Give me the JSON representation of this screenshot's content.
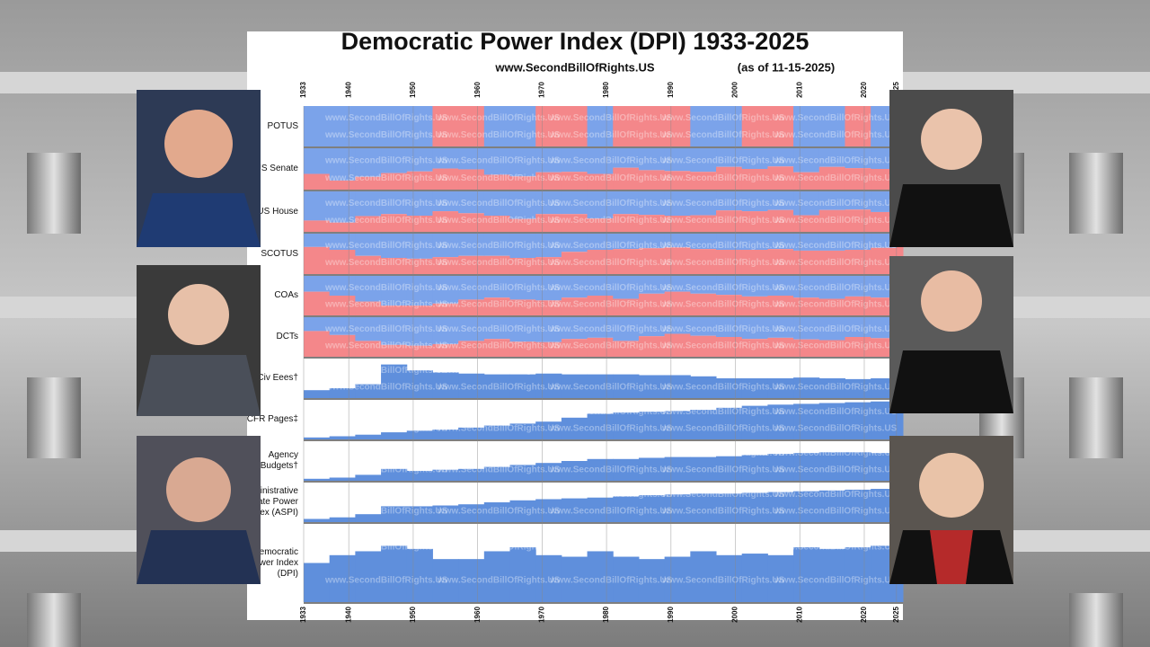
{
  "chart_data": {
    "type": "stacked-panels",
    "title": "Democratic Power Index (DPI) 1933-2025",
    "subtitle": "www.SecondBillOfRights.US",
    "annotation": "(as of 11-15-2025)",
    "xlim": [
      1933,
      2026
    ],
    "xticks": [
      1933,
      1940,
      1950,
      1960,
      1970,
      1980,
      1990,
      2000,
      2010,
      2020,
      2025
    ],
    "grid": true,
    "panels": [
      {
        "name": "POTUS",
        "type": "share",
        "color": "#7ba3ea",
        "color_other": "#f4878a",
        "x": [
          1933,
          1953,
          1961,
          1969,
          1977,
          1981,
          1993,
          2001,
          2009,
          2017,
          2021,
          2025
        ],
        "values": [
          100,
          0,
          100,
          0,
          100,
          0,
          100,
          0,
          100,
          0,
          100,
          0
        ]
      },
      {
        "name": "US Senate",
        "type": "share",
        "color": "#7ba3ea",
        "color_other": "#f4878a",
        "x": [
          1933,
          1937,
          1941,
          1945,
          1949,
          1953,
          1957,
          1961,
          1965,
          1969,
          1973,
          1977,
          1981,
          1985,
          1989,
          1993,
          1997,
          2001,
          2005,
          2009,
          2013,
          2017,
          2021,
          2025
        ],
        "values": [
          62,
          78,
          69,
          60,
          56,
          49,
          51,
          64,
          68,
          58,
          57,
          62,
          47,
          53,
          55,
          57,
          45,
          50,
          44,
          58,
          45,
          48,
          50,
          47
        ]
      },
      {
        "name": "US House",
        "type": "share",
        "color": "#7ba3ea",
        "color_other": "#f4878a",
        "x": [
          1933,
          1937,
          1941,
          1945,
          1949,
          1953,
          1957,
          1961,
          1965,
          1969,
          1973,
          1977,
          1981,
          1985,
          1989,
          1993,
          1997,
          2001,
          2005,
          2009,
          2013,
          2017,
          2021,
          2025
        ],
        "values": [
          72,
          77,
          61,
          56,
          60,
          49,
          54,
          60,
          68,
          56,
          56,
          67,
          56,
          58,
          60,
          59,
          47,
          49,
          46,
          59,
          46,
          45,
          51,
          49
        ]
      },
      {
        "name": "SCOTUS",
        "type": "share",
        "color": "#7ba3ea",
        "color_other": "#f4878a",
        "x": [
          1933,
          1937,
          1941,
          1945,
          1949,
          1953,
          1957,
          1961,
          1965,
          1969,
          1973,
          1977,
          1981,
          1985,
          1989,
          1993,
          1997,
          2001,
          2005,
          2009,
          2013,
          2017,
          2021,
          2025
        ],
        "values": [
          33,
          40,
          55,
          60,
          62,
          58,
          55,
          55,
          60,
          58,
          45,
          40,
          38,
          36,
          34,
          38,
          40,
          40,
          38,
          42,
          42,
          40,
          35,
          33
        ]
      },
      {
        "name": "COAs",
        "type": "share",
        "color": "#7ba3ea",
        "color_other": "#f4878a",
        "x": [
          1933,
          1937,
          1941,
          1945,
          1949,
          1953,
          1957,
          1961,
          1965,
          1969,
          1973,
          1977,
          1981,
          1985,
          1989,
          1993,
          1997,
          2001,
          2005,
          2009,
          2013,
          2017,
          2021,
          2025
        ],
        "values": [
          40,
          50,
          65,
          75,
          75,
          70,
          60,
          55,
          60,
          62,
          55,
          50,
          58,
          45,
          40,
          45,
          48,
          52,
          50,
          55,
          58,
          52,
          55,
          52
        ]
      },
      {
        "name": "DCTs",
        "type": "share",
        "color": "#7ba3ea",
        "color_other": "#f4878a",
        "x": [
          1933,
          1937,
          1941,
          1945,
          1949,
          1953,
          1957,
          1961,
          1965,
          1969,
          1973,
          1977,
          1981,
          1985,
          1989,
          1993,
          1997,
          2001,
          2005,
          2009,
          2013,
          2017,
          2021,
          2025
        ],
        "values": [
          35,
          45,
          60,
          70,
          72,
          68,
          60,
          55,
          62,
          63,
          55,
          52,
          60,
          48,
          42,
          47,
          50,
          55,
          52,
          56,
          58,
          50,
          53,
          50
        ]
      },
      {
        "name": "Fed Civ Eees†",
        "type": "area",
        "color": "#5f8fdc",
        "x": [
          1933,
          1937,
          1941,
          1945,
          1949,
          1953,
          1957,
          1961,
          1965,
          1969,
          1973,
          1977,
          1981,
          1985,
          1989,
          1993,
          1997,
          2001,
          2005,
          2009,
          2013,
          2017,
          2021,
          2025
        ],
        "values": [
          20,
          25,
          35,
          85,
          70,
          65,
          62,
          60,
          60,
          62,
          60,
          60,
          60,
          58,
          58,
          55,
          50,
          50,
          50,
          52,
          50,
          48,
          50,
          52
        ]
      },
      {
        "name": "CFR Pages‡",
        "type": "area",
        "color": "#5f8fdc",
        "x": [
          1933,
          1937,
          1941,
          1945,
          1949,
          1953,
          1957,
          1961,
          1965,
          1969,
          1973,
          1977,
          1981,
          1985,
          1989,
          1993,
          1997,
          2001,
          2005,
          2009,
          2013,
          2017,
          2021,
          2025
        ],
        "values": [
          5,
          8,
          12,
          18,
          22,
          25,
          30,
          35,
          40,
          45,
          55,
          65,
          68,
          70,
          72,
          75,
          80,
          85,
          88,
          90,
          92,
          94,
          96,
          98
        ]
      },
      {
        "name": "Agency Budgets†",
        "type": "area",
        "color": "#5f8fdc",
        "x": [
          1933,
          1937,
          1941,
          1945,
          1949,
          1953,
          1957,
          1961,
          1965,
          1969,
          1973,
          1977,
          1981,
          1985,
          1989,
          1993,
          1997,
          2001,
          2005,
          2009,
          2013,
          2017,
          2021,
          2025
        ],
        "values": [
          5,
          8,
          15,
          30,
          25,
          28,
          30,
          35,
          40,
          45,
          50,
          55,
          55,
          58,
          60,
          60,
          62,
          65,
          68,
          70,
          72,
          72,
          70,
          75
        ]
      },
      {
        "name": "Administrative State Power Index (ASPI)",
        "type": "area",
        "color": "#5f8fdc",
        "x": [
          1933,
          1937,
          1941,
          1945,
          1949,
          1953,
          1957,
          1961,
          1965,
          1969,
          1973,
          1977,
          1981,
          1985,
          1989,
          1993,
          1997,
          2001,
          2005,
          2009,
          2013,
          2017,
          2021,
          2025
        ],
        "values": [
          8,
          12,
          20,
          40,
          40,
          42,
          45,
          50,
          55,
          58,
          60,
          62,
          65,
          68,
          70,
          72,
          72,
          74,
          76,
          78,
          80,
          82,
          84,
          85
        ]
      },
      {
        "name": "Democratic Power Index (DPI)",
        "type": "area",
        "color": "#5f8fdc",
        "x": [
          1933,
          1937,
          1941,
          1945,
          1949,
          1953,
          1957,
          1961,
          1965,
          1969,
          1973,
          1977,
          1981,
          1985,
          1989,
          1993,
          1997,
          2001,
          2005,
          2009,
          2013,
          2017,
          2021,
          2025
        ],
        "values": [
          50,
          60,
          65,
          72,
          68,
          55,
          55,
          65,
          70,
          60,
          58,
          65,
          58,
          55,
          58,
          65,
          60,
          62,
          60,
          70,
          68,
          70,
          72,
          75
        ]
      }
    ]
  }
}
